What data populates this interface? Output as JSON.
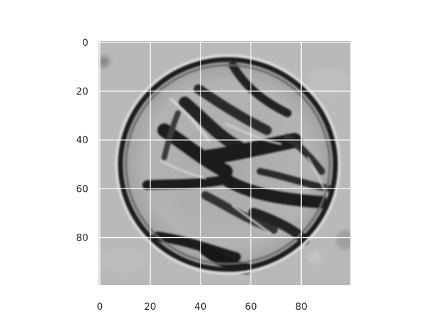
{
  "image": {
    "description_icon": "microscopy-cell-image",
    "colormap": "gray",
    "background_color": "#b8b8b8"
  },
  "chart_data": {
    "type": "heatmap",
    "title": "",
    "xlabel": "",
    "ylabel": "",
    "xlim": [
      0,
      99
    ],
    "ylim": [
      99,
      0
    ],
    "grid": true,
    "grid_color": "#ffffff",
    "x_ticks": [
      0,
      20,
      40,
      60,
      80
    ],
    "y_ticks": [
      0,
      20,
      40,
      60,
      80
    ],
    "x_tick_labels": [
      "0",
      "20",
      "40",
      "60",
      "80"
    ],
    "y_tick_labels": [
      "0",
      "20",
      "40",
      "60",
      "80"
    ]
  }
}
